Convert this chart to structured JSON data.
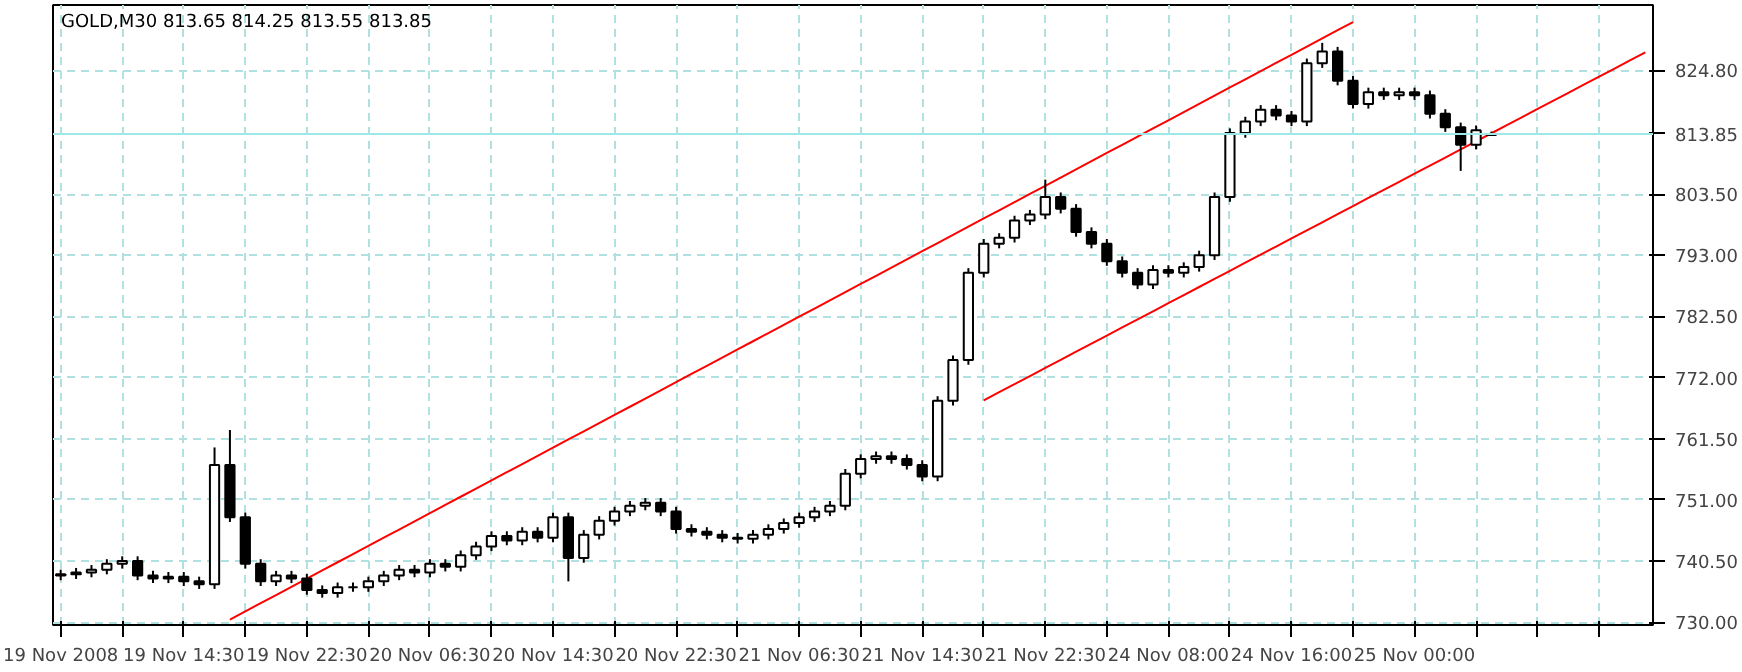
{
  "chart_data": {
    "type": "candlestick",
    "title": "GOLD,M30  813.65 814.25 813.55 813.85",
    "categories": [
      "19 Nov 2008",
      null,
      null,
      null,
      null,
      null,
      null,
      null,
      "19 Nov 14:30",
      null,
      null,
      null,
      null,
      null,
      null,
      null,
      "19 Nov 22:30",
      null,
      null,
      null,
      null,
      null,
      null,
      null,
      "20 Nov 06:30",
      null,
      null,
      null,
      null,
      null,
      null,
      null,
      "20 Nov 14:30",
      null,
      null,
      null,
      null,
      null,
      null,
      null,
      "20 Nov 22:30",
      null,
      null,
      null,
      null,
      null,
      null,
      null,
      "21 Nov 06:30",
      null,
      null,
      null,
      null,
      null,
      null,
      null,
      "21 Nov 14:30",
      null,
      null,
      null,
      null,
      null,
      null,
      null,
      "21 Nov 22:30",
      null,
      null,
      null,
      null,
      null,
      null,
      null,
      "24 Nov 08:00",
      null,
      null,
      null,
      null,
      null,
      null,
      null,
      "24 Nov 16:00",
      null,
      null,
      null,
      null,
      null,
      null,
      null,
      "25 Nov 00:00",
      null,
      null,
      null,
      null,
      null,
      null,
      null,
      null,
      null,
      null,
      null,
      null,
      null,
      null,
      null
    ],
    "ohlc": [
      [
        738.0,
        739.0,
        737.2,
        738.2
      ],
      [
        738.2,
        739.3,
        737.4,
        738.5
      ],
      [
        738.5,
        739.8,
        737.7,
        739.0
      ],
      [
        739.0,
        740.8,
        738.2,
        740.0
      ],
      [
        740.0,
        741.3,
        739.2,
        740.5
      ],
      [
        740.5,
        741.3,
        737.2,
        738.0
      ],
      [
        738.0,
        738.8,
        736.7,
        737.5
      ],
      [
        737.5,
        738.6,
        736.7,
        737.8
      ],
      [
        737.8,
        738.6,
        736.2,
        737.0
      ],
      [
        737.0,
        737.8,
        735.7,
        736.5
      ],
      [
        736.5,
        760.0,
        735.7,
        757.0
      ],
      [
        757.0,
        763.0,
        747.2,
        748.0
      ],
      [
        748.0,
        748.8,
        739.2,
        740.0
      ],
      [
        740.0,
        740.8,
        736.2,
        737.0
      ],
      [
        737.0,
        738.8,
        736.2,
        738.0
      ],
      [
        738.0,
        738.8,
        736.7,
        737.5
      ],
      [
        737.5,
        738.3,
        734.7,
        735.5
      ],
      [
        735.5,
        736.3,
        734.2,
        735.0
      ],
      [
        735.0,
        736.8,
        734.2,
        736.0
      ],
      [
        736.0,
        736.8,
        735.2,
        736.0
      ],
      [
        736.0,
        737.8,
        735.2,
        737.0
      ],
      [
        737.0,
        738.8,
        736.2,
        738.0
      ],
      [
        738.0,
        739.8,
        737.2,
        739.0
      ],
      [
        739.0,
        739.8,
        737.7,
        738.5
      ],
      [
        738.5,
        740.8,
        737.7,
        740.0
      ],
      [
        740.0,
        740.8,
        738.7,
        739.5
      ],
      [
        739.5,
        742.3,
        738.7,
        741.5
      ],
      [
        741.5,
        743.8,
        740.7,
        743.0
      ],
      [
        743.0,
        745.6,
        742.2,
        744.8
      ],
      [
        744.8,
        745.6,
        743.2,
        744.0
      ],
      [
        744.0,
        746.3,
        743.2,
        745.5
      ],
      [
        745.5,
        746.3,
        743.7,
        744.5
      ],
      [
        744.5,
        748.8,
        743.7,
        748.0
      ],
      [
        748.0,
        748.8,
        737.0,
        741.0
      ],
      [
        741.0,
        745.8,
        740.2,
        745.0
      ],
      [
        745.0,
        748.2,
        744.2,
        747.4
      ],
      [
        747.4,
        749.8,
        746.6,
        749.0
      ],
      [
        749.0,
        750.8,
        748.2,
        750.0
      ],
      [
        750.0,
        751.3,
        749.2,
        750.5
      ],
      [
        750.5,
        751.3,
        748.2,
        749.0
      ],
      [
        749.0,
        749.8,
        745.2,
        746.0
      ],
      [
        746.0,
        746.8,
        744.7,
        745.5
      ],
      [
        745.5,
        746.3,
        744.2,
        745.0
      ],
      [
        745.0,
        745.8,
        743.7,
        744.5
      ],
      [
        744.5,
        745.3,
        743.5,
        744.3
      ],
      [
        744.3,
        745.8,
        743.5,
        745.0
      ],
      [
        745.0,
        746.8,
        744.2,
        746.0
      ],
      [
        746.0,
        747.8,
        745.2,
        747.0
      ],
      [
        747.0,
        748.8,
        746.2,
        748.0
      ],
      [
        748.0,
        749.8,
        747.2,
        749.0
      ],
      [
        749.0,
        750.8,
        748.2,
        750.0
      ],
      [
        750.0,
        756.3,
        749.2,
        755.5
      ],
      [
        755.5,
        758.8,
        754.7,
        758.0
      ],
      [
        758.0,
        759.3,
        757.2,
        758.5
      ],
      [
        758.5,
        759.3,
        757.2,
        758.0
      ],
      [
        758.0,
        758.8,
        756.2,
        757.0
      ],
      [
        757.0,
        757.8,
        754.2,
        755.0
      ],
      [
        755.0,
        768.8,
        754.2,
        768.0
      ],
      [
        768.0,
        775.8,
        767.2,
        775.0
      ],
      [
        775.0,
        790.8,
        774.2,
        790.0
      ],
      [
        790.0,
        795.8,
        789.2,
        795.0
      ],
      [
        795.0,
        796.8,
        794.2,
        796.0
      ],
      [
        796.0,
        799.8,
        795.2,
        799.0
      ],
      [
        799.0,
        800.8,
        798.2,
        800.0
      ],
      [
        800.0,
        806.0,
        799.2,
        803.0
      ],
      [
        803.0,
        803.8,
        800.2,
        801.0
      ],
      [
        801.0,
        801.8,
        796.2,
        797.0
      ],
      [
        797.0,
        797.8,
        794.2,
        795.0
      ],
      [
        795.0,
        795.8,
        791.2,
        792.0
      ],
      [
        792.0,
        792.8,
        789.2,
        790.0
      ],
      [
        790.0,
        790.8,
        787.2,
        788.0
      ],
      [
        788.0,
        791.3,
        787.2,
        790.5
      ],
      [
        790.5,
        791.3,
        789.2,
        790.0
      ],
      [
        790.0,
        791.8,
        789.2,
        791.0
      ],
      [
        791.0,
        793.8,
        790.2,
        793.0
      ],
      [
        793.0,
        803.8,
        792.2,
        803.0
      ],
      [
        803.0,
        814.8,
        802.2,
        814.0
      ],
      [
        814.0,
        816.8,
        813.2,
        816.0
      ],
      [
        816.0,
        818.8,
        815.2,
        818.0
      ],
      [
        818.0,
        818.8,
        816.2,
        817.0
      ],
      [
        817.0,
        817.8,
        815.2,
        816.0
      ],
      [
        816.0,
        826.8,
        815.2,
        826.0
      ],
      [
        826.0,
        829.5,
        825.2,
        828.0
      ],
      [
        828.0,
        828.8,
        822.2,
        823.0
      ],
      [
        823.0,
        823.8,
        818.2,
        819.0
      ],
      [
        819.0,
        821.8,
        818.2,
        821.0
      ],
      [
        821.0,
        821.8,
        819.7,
        820.5
      ],
      [
        820.5,
        821.8,
        819.7,
        821.0
      ],
      [
        821.0,
        821.8,
        819.7,
        820.5
      ],
      [
        820.5,
        821.3,
        816.5,
        817.3
      ],
      [
        817.3,
        818.1,
        814.2,
        815.0
      ],
      [
        815.0,
        815.8,
        807.5,
        812.0
      ],
      [
        812.0,
        815.3,
        811.2,
        814.5
      ],
      [
        813.65,
        814.25,
        813.55,
        813.85
      ],
      null,
      null,
      null,
      null,
      null,
      null,
      null,
      null,
      null,
      null
    ],
    "series": [
      {
        "type": "line",
        "color": "#ff0000",
        "values": [
          null,
          null,
          null,
          null,
          null,
          null,
          null,
          null,
          null,
          null,
          null,
          730.44,
          731.84,
          733.25,
          734.65,
          736.06,
          737.47,
          738.87,
          740.28,
          741.68,
          743.09,
          744.5,
          745.9,
          747.31,
          748.71,
          750.12,
          751.53,
          752.93,
          754.34,
          755.74,
          757.15,
          758.56,
          759.96,
          761.37,
          762.77,
          764.18,
          765.59,
          766.99,
          768.4,
          769.8,
          771.21,
          772.62,
          774.02,
          775.43,
          776.83,
          778.24,
          779.65,
          781.05,
          782.46,
          783.86,
          785.27,
          786.68,
          788.08,
          789.49,
          790.89,
          792.3,
          793.71,
          795.11,
          796.52,
          797.92,
          799.33,
          800.74,
          802.14,
          803.55,
          804.95,
          806.36,
          807.77,
          809.17,
          810.58,
          811.98,
          813.39,
          814.8,
          816.2,
          817.61,
          819.01,
          820.42,
          821.83,
          823.23,
          824.64,
          826.04,
          827.45,
          828.86,
          830.26,
          831.67,
          833.07,
          null,
          null,
          null,
          null,
          null,
          null,
          null,
          null,
          null,
          null,
          null,
          null,
          null,
          null,
          null,
          null,
          null,
          null,
          null
        ]
      },
      {
        "type": "line",
        "color": "#ff0000",
        "values": [
          null,
          null,
          null,
          null,
          null,
          null,
          null,
          null,
          null,
          null,
          null,
          null,
          null,
          null,
          null,
          null,
          null,
          null,
          null,
          null,
          null,
          null,
          null,
          null,
          null,
          null,
          null,
          null,
          null,
          null,
          null,
          null,
          null,
          null,
          null,
          null,
          null,
          null,
          null,
          null,
          null,
          null,
          null,
          null,
          null,
          null,
          null,
          null,
          null,
          null,
          null,
          null,
          null,
          null,
          null,
          null,
          null,
          null,
          null,
          null,
          768.1,
          769.49,
          770.88,
          772.27,
          773.66,
          775.05,
          776.44,
          777.83,
          779.22,
          780.61,
          782.0,
          783.39,
          784.78,
          786.17,
          787.56,
          788.95,
          790.34,
          791.73,
          793.12,
          794.51,
          795.9,
          797.29,
          798.68,
          800.07,
          801.46,
          802.85,
          804.24,
          805.63,
          807.02,
          808.41,
          809.8,
          811.19,
          812.58,
          813.97,
          815.36,
          816.75,
          818.14,
          819.53,
          820.92,
          822.31,
          823.7,
          825.09,
          826.48,
          827.87
        ]
      }
    ],
    "ref_lines": [
      {
        "axis": "y",
        "value": 813.85,
        "label": "813.85",
        "color": "#9ee8e8"
      }
    ],
    "ylim": [
      729.5,
      836.0
    ],
    "yticks": [
      {
        "value": 730,
        "label": "730.00"
      },
      {
        "value": 740.5,
        "label": "740.50"
      },
      {
        "value": 751,
        "label": "751.00"
      },
      {
        "value": 761.5,
        "label": "761.50"
      },
      {
        "value": 772,
        "label": "772.00"
      },
      {
        "value": 782.5,
        "label": "782.50"
      },
      {
        "value": 793,
        "label": "793.00"
      },
      {
        "value": 803.5,
        "label": "803.50"
      },
      {
        "value": 824.8,
        "label": "824.80"
      }
    ],
    "grid": true
  }
}
